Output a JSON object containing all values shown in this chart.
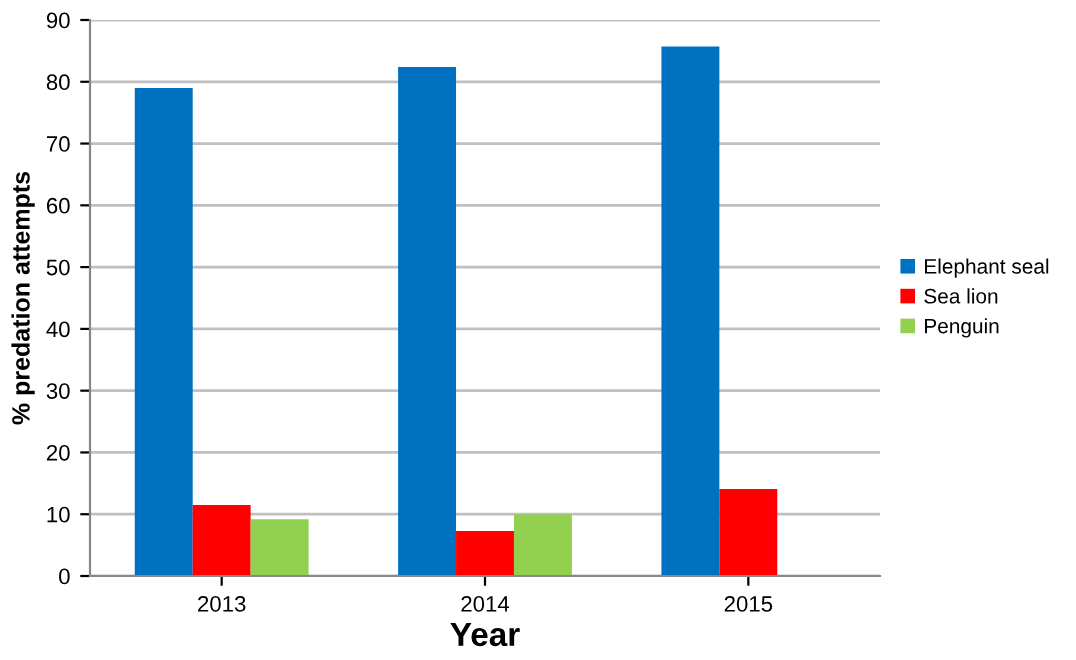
{
  "chart_data": {
    "type": "bar",
    "xlabel": "Year",
    "ylabel": "% predation attempts",
    "categories": [
      "2013",
      "2014",
      "2015"
    ],
    "series": [
      {
        "name": "Elephant seal",
        "color": "#0070c0",
        "values": [
          79,
          82.4,
          85.7
        ]
      },
      {
        "name": "Sea lion",
        "color": "#ff0000",
        "values": [
          11.5,
          7.3,
          14.1
        ]
      },
      {
        "name": "Penguin",
        "color": "#92d050",
        "values": [
          9.2,
          10,
          null
        ]
      }
    ],
    "ylim": [
      0,
      90
    ],
    "yticks": [
      0,
      10,
      20,
      30,
      40,
      50,
      60,
      70,
      80,
      90
    ],
    "grid": "y",
    "legend": "right"
  }
}
